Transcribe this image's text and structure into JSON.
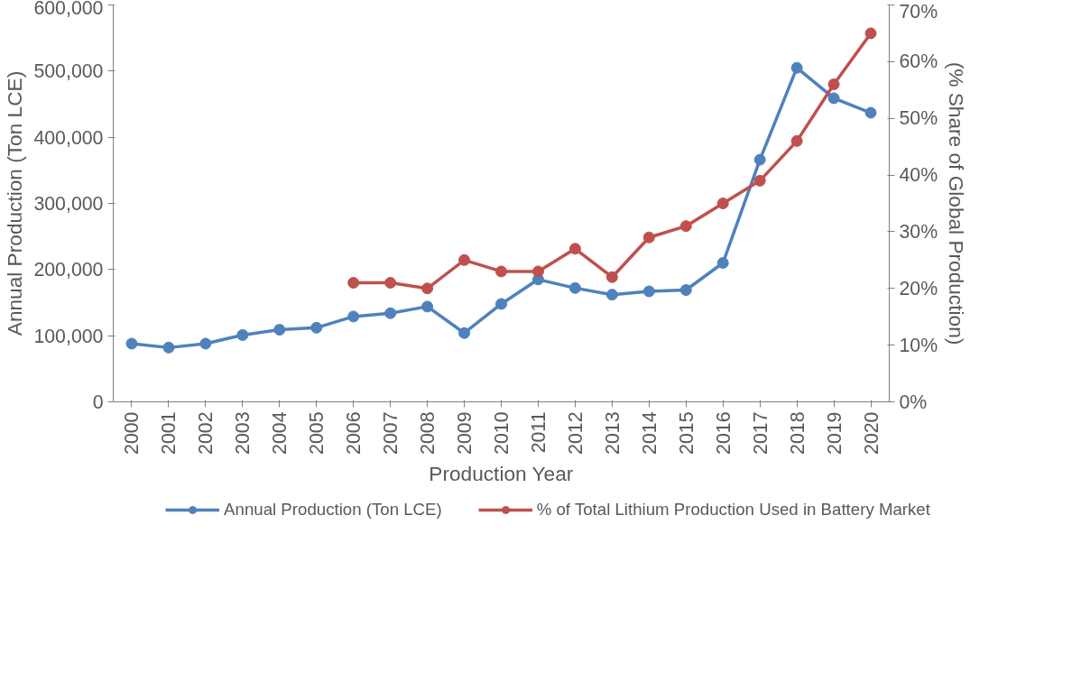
{
  "chart_data": {
    "type": "line",
    "xlabel": "Production Year",
    "ylabel": "Annual Production (Ton LCE)",
    "y2label": "(% Share of Global Production)",
    "categories": [
      "2000",
      "2001",
      "2002",
      "2003",
      "2004",
      "2005",
      "2006",
      "2007",
      "2008",
      "2009",
      "2010",
      "2011",
      "2012",
      "2013",
      "2014",
      "2015",
      "2016",
      "2017",
      "2018",
      "2019",
      "2020"
    ],
    "series": [
      {
        "name": "Annual Production (Ton LCE)",
        "color": "#4f81bd",
        "values": [
          88000,
          82000,
          88000,
          101000,
          109000,
          112000,
          129000,
          134000,
          144000,
          104000,
          148000,
          185000,
          172000,
          162000,
          167000,
          169000,
          210000,
          366000,
          505000,
          459000,
          437000
        ]
      },
      {
        "name": "% of Total Lithium Production Used in Battery Market",
        "color": "#c0504d",
        "axis": "y2",
        "values": [
          null,
          null,
          null,
          null,
          null,
          null,
          21,
          21,
          20,
          25,
          23,
          23,
          27,
          22,
          29,
          31,
          35,
          39,
          46,
          56,
          65
        ]
      }
    ],
    "ylim": [
      0,
      600000
    ],
    "yticks": [
      {
        "value": 0,
        "label": "0"
      },
      {
        "value": 100000,
        "label": "100,000"
      },
      {
        "value": 200000,
        "label": "200,000"
      },
      {
        "value": 300000,
        "label": "300,000"
      },
      {
        "value": 400000,
        "label": "400,000"
      },
      {
        "value": 500000,
        "label": "500,000"
      },
      {
        "value": 600000,
        "label": "600,000"
      }
    ],
    "y2lim": [
      0,
      70
    ],
    "y2ticks": [
      {
        "value": 0,
        "label": "0%"
      },
      {
        "value": 10,
        "label": "10%"
      },
      {
        "value": 20,
        "label": "20%"
      },
      {
        "value": 30,
        "label": "30%"
      },
      {
        "value": 40,
        "label": "40%"
      },
      {
        "value": 50,
        "label": "50%"
      },
      {
        "value": 60,
        "label": "60%"
      },
      {
        "value": 70,
        "label": "70%"
      }
    ],
    "grid": false,
    "legend": "bottom",
    "marker": "circle",
    "line_style": "solid"
  }
}
